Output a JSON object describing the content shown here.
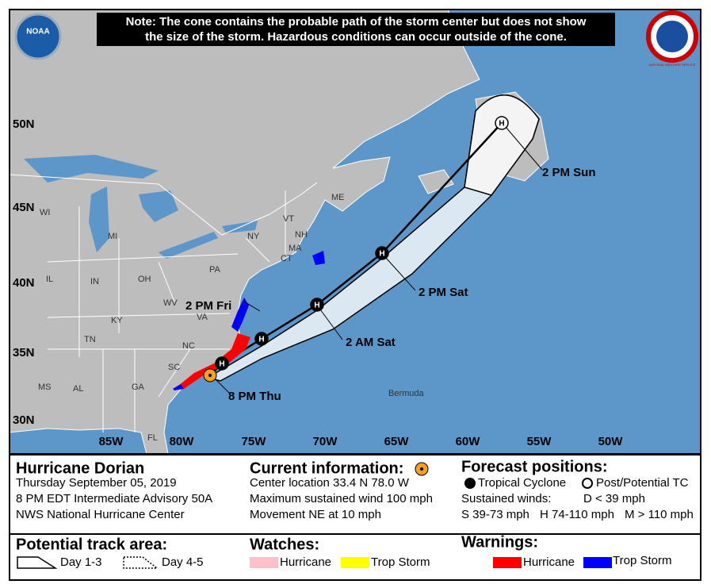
{
  "note": [
    "Note: The cone contains the probable path of the storm center but does not show",
    "the size of the storm. Hazardous conditions can occur outside of the cone."
  ],
  "logos": {
    "left": "NOAA",
    "right": "NATIONAL WEATHER SERVICE"
  },
  "map": {
    "latitudes": [
      "50N",
      "45N",
      "40N",
      "35N",
      "30N"
    ],
    "longitudes": [
      "85W",
      "80W",
      "75W",
      "70W",
      "65W",
      "60W",
      "55W",
      "50W"
    ],
    "states": [
      "WI",
      "MI",
      "NY",
      "VT",
      "NH",
      "ME",
      "MA",
      "CT",
      "PA",
      "OH",
      "IN",
      "IL",
      "WV",
      "VA",
      "KY",
      "TN",
      "NC",
      "SC",
      "GA",
      "AL",
      "MS",
      "FL"
    ],
    "places": [
      "Bermuda"
    ],
    "forecast_points": [
      {
        "marker": "H",
        "time": "8 PM Thu"
      },
      {
        "marker": "H",
        "time": "2 PM Fri"
      },
      {
        "marker": "H",
        "time": "2 AM Sat"
      },
      {
        "marker": "H",
        "time": "2 PM Sat"
      },
      {
        "marker": "H",
        "time": "2 PM Sun"
      }
    ]
  },
  "storm": {
    "name": "Hurricane Dorian",
    "date": "Thursday September 05, 2019",
    "advisory": "8 PM EDT Intermediate Advisory 50A",
    "center": "NWS National Hurricane Center"
  },
  "current": {
    "title": "Current information:",
    "lines": [
      "Center location 33.4 N 78.0 W",
      "Maximum sustained wind 100 mph",
      "Movement NE at 10 mph"
    ]
  },
  "forecast": {
    "title": "Forecast positions:",
    "tropical": "Tropical Cyclone",
    "post": "Post/Potential TC",
    "winds_title": "Sustained winds:",
    "d": "D < 39 mph",
    "s": "S 39-73 mph",
    "h": "H 74-110 mph",
    "m": "M > 110 mph"
  },
  "track": {
    "title": "Potential track area:",
    "day13": "Day 1-3",
    "day45": "Day 4-5"
  },
  "watches": {
    "title": "Watches:",
    "hurricane": "Hurricane",
    "trop_storm": "Trop Storm"
  },
  "warnings": {
    "title": "Warnings:",
    "hurricane": "Hurricane",
    "trop_storm": "Trop Storm"
  }
}
